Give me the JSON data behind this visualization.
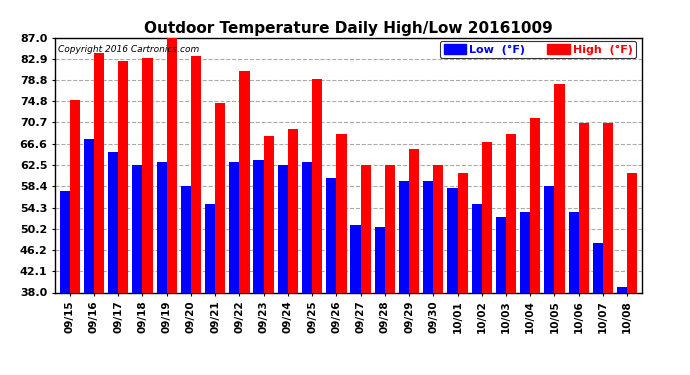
{
  "title": "Outdoor Temperature Daily High/Low 20161009",
  "copyright": "Copyright 2016 Cartronics.com",
  "categories": [
    "09/15",
    "09/16",
    "09/17",
    "09/18",
    "09/19",
    "09/20",
    "09/21",
    "09/22",
    "09/23",
    "09/24",
    "09/25",
    "09/26",
    "09/27",
    "09/28",
    "09/29",
    "09/30",
    "10/01",
    "10/02",
    "10/03",
    "10/04",
    "10/05",
    "10/06",
    "10/07",
    "10/08"
  ],
  "high": [
    75.0,
    84.0,
    82.5,
    83.0,
    87.0,
    83.5,
    74.5,
    80.5,
    68.0,
    69.5,
    79.0,
    68.5,
    62.5,
    62.5,
    65.5,
    62.5,
    61.0,
    67.0,
    68.5,
    71.5,
    78.0,
    70.5,
    70.5,
    61.0
  ],
  "low": [
    57.5,
    67.5,
    65.0,
    62.5,
    63.0,
    58.5,
    55.0,
    63.0,
    63.5,
    62.5,
    63.0,
    60.0,
    51.0,
    50.5,
    59.5,
    59.5,
    58.0,
    55.0,
    52.5,
    53.5,
    58.5,
    53.5,
    47.5,
    39.0
  ],
  "ymin": 38.0,
  "ymax": 87.0,
  "yticks": [
    38.0,
    42.1,
    46.2,
    50.2,
    54.3,
    58.4,
    62.5,
    66.6,
    70.7,
    74.8,
    78.8,
    82.9,
    87.0
  ],
  "bar_width": 0.42,
  "high_color": "#ff0000",
  "low_color": "#0000ff",
  "bg_color": "#ffffff",
  "grid_color": "#aaaaaa",
  "title_fontsize": 11,
  "legend_low_label": "Low  (°F)",
  "legend_high_label": "High  (°F)"
}
